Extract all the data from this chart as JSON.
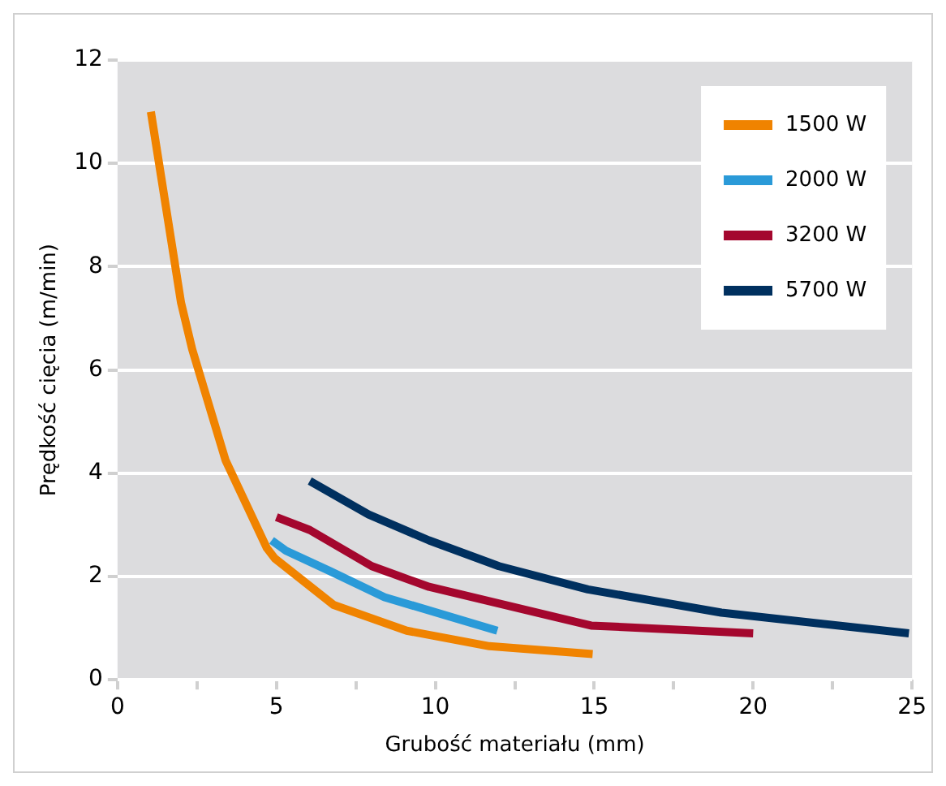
{
  "chart_data": {
    "type": "line",
    "xlabel": "Grubość materiału (mm)",
    "ylabel": "Prędkość cięcia (m/min)",
    "xlim": [
      0,
      25
    ],
    "xticks": [
      0,
      {
        "value": 2.5,
        "label": null
      },
      5,
      {
        "value": 7.5,
        "label": null
      },
      10,
      {
        "value": 12.5,
        "label": null
      },
      15,
      {
        "value": 17.5,
        "label": null
      },
      20,
      {
        "value": 22.5,
        "label": null
      },
      25
    ],
    "ylim": [
      0,
      12
    ],
    "yticks": [
      0,
      2,
      4,
      6,
      8,
      10,
      12
    ],
    "grid": "y",
    "legend": "top right",
    "marker": "none",
    "line_style": "solid",
    "series": [
      {
        "name": "1500 W",
        "color": "#f08300",
        "x": [
          1.05,
          2,
          2.35,
          3.4,
          4.7,
          4.95,
          6.8,
          9.1,
          11.7,
          14.95
        ],
        "values": [
          11,
          7.3,
          6.4,
          4.25,
          2.55,
          2.35,
          1.45,
          0.95,
          0.65,
          0.5
        ]
      },
      {
        "name": "2000 W",
        "color": "#2a9ad8",
        "x": [
          4.85,
          5.3,
          6.7,
          8.4,
          11.95
        ],
        "values": [
          2.7,
          2.5,
          2.1,
          1.6,
          0.95
        ]
      },
      {
        "name": "3200 W",
        "color": "#a4072e",
        "x": [
          5,
          6.05,
          8,
          9.8,
          14.9,
          20
        ],
        "values": [
          3.15,
          2.9,
          2.2,
          1.8,
          1.05,
          0.9
        ]
      },
      {
        "name": "5700 W",
        "color": "#00305f",
        "x": [
          6.05,
          7.9,
          9.8,
          12,
          14.8,
          19,
          24.9
        ],
        "values": [
          3.85,
          3.2,
          2.7,
          2.2,
          1.75,
          1.3,
          0.9
        ]
      }
    ]
  }
}
